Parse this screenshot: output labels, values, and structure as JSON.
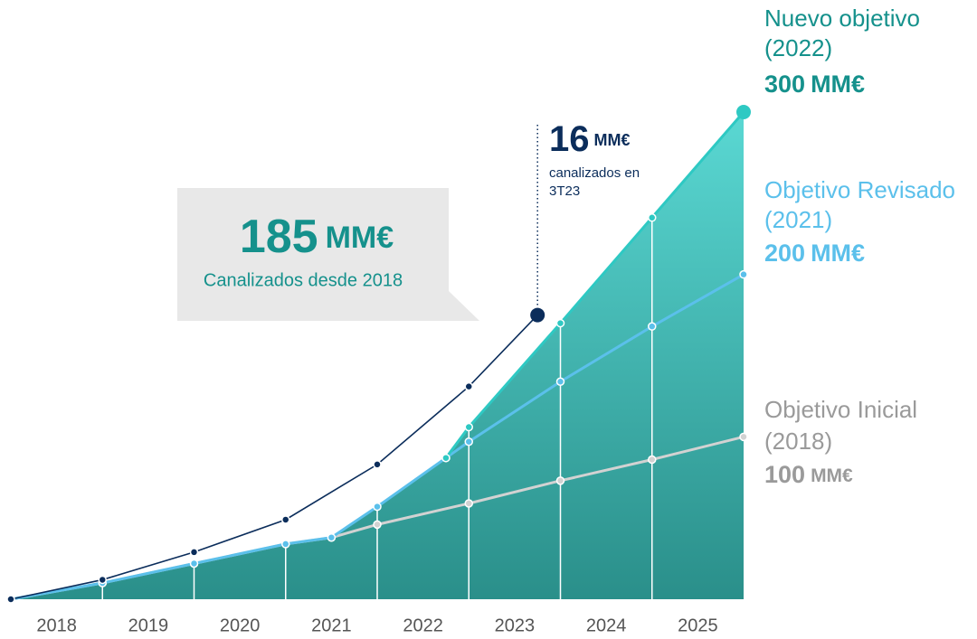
{
  "chart_data": {
    "type": "line",
    "xlim": [
      2018,
      2026
    ],
    "ylim": [
      0,
      300
    ],
    "xticks": [
      {
        "value": 2018.5,
        "label": "2018"
      },
      {
        "value": 2019.5,
        "label": "2019"
      },
      {
        "value": 2020.5,
        "label": "2020"
      },
      {
        "value": 2021.5,
        "label": "2021"
      },
      {
        "value": 2022.5,
        "label": "2022"
      },
      {
        "value": 2023.5,
        "label": "2023"
      },
      {
        "value": 2024.5,
        "label": "2024"
      },
      {
        "value": 2025.5,
        "label": "2025"
      }
    ],
    "series": [
      {
        "name": "Objetivo Inicial",
        "period": "(2018)",
        "target": 100,
        "unit": "MM€",
        "color": "#d2d2d2",
        "label_color": "#9a9a9a",
        "x": [
          2018,
          2019,
          2020,
          2021,
          2021.5,
          2022,
          2023,
          2024,
          2025,
          2026
        ],
        "values": [
          0,
          10,
          22,
          34,
          38,
          46,
          59,
          73,
          86,
          100
        ]
      },
      {
        "name": "Objetivo Revisado",
        "period": "(2021)",
        "target": 200,
        "unit": "MM€",
        "color": "#5bc0eb",
        "label_color": "#5bc0eb",
        "x": [
          2018,
          2019,
          2020,
          2021,
          2021.5,
          2022,
          2022.75,
          2023,
          2024,
          2025,
          2026
        ],
        "values": [
          0,
          10,
          22,
          34,
          38,
          57,
          87,
          97,
          134,
          168,
          200
        ]
      },
      {
        "name": "Nuevo objetivo",
        "period": "(2022)",
        "target": 300,
        "unit": "MM€",
        "color": "#2ec9c3",
        "label_color": "#15918c",
        "x": [
          2022.75,
          2023,
          2024,
          2025,
          2026
        ],
        "values": [
          87,
          106,
          170,
          235,
          300
        ]
      },
      {
        "color": "#0b2d5b",
        "x": [
          2018,
          2019,
          2020,
          2021,
          2022,
          2023,
          2023.75
        ],
        "values": [
          0,
          12,
          29,
          49,
          83,
          131,
          175
        ]
      }
    ],
    "annotations": {
      "total": {
        "value": 185,
        "unit": "MM€",
        "text": "Canalizados desde 2018"
      },
      "quarter": {
        "value": 16,
        "unit": "MM€",
        "lines": [
          "canalizados en",
          "3T23"
        ]
      }
    }
  }
}
